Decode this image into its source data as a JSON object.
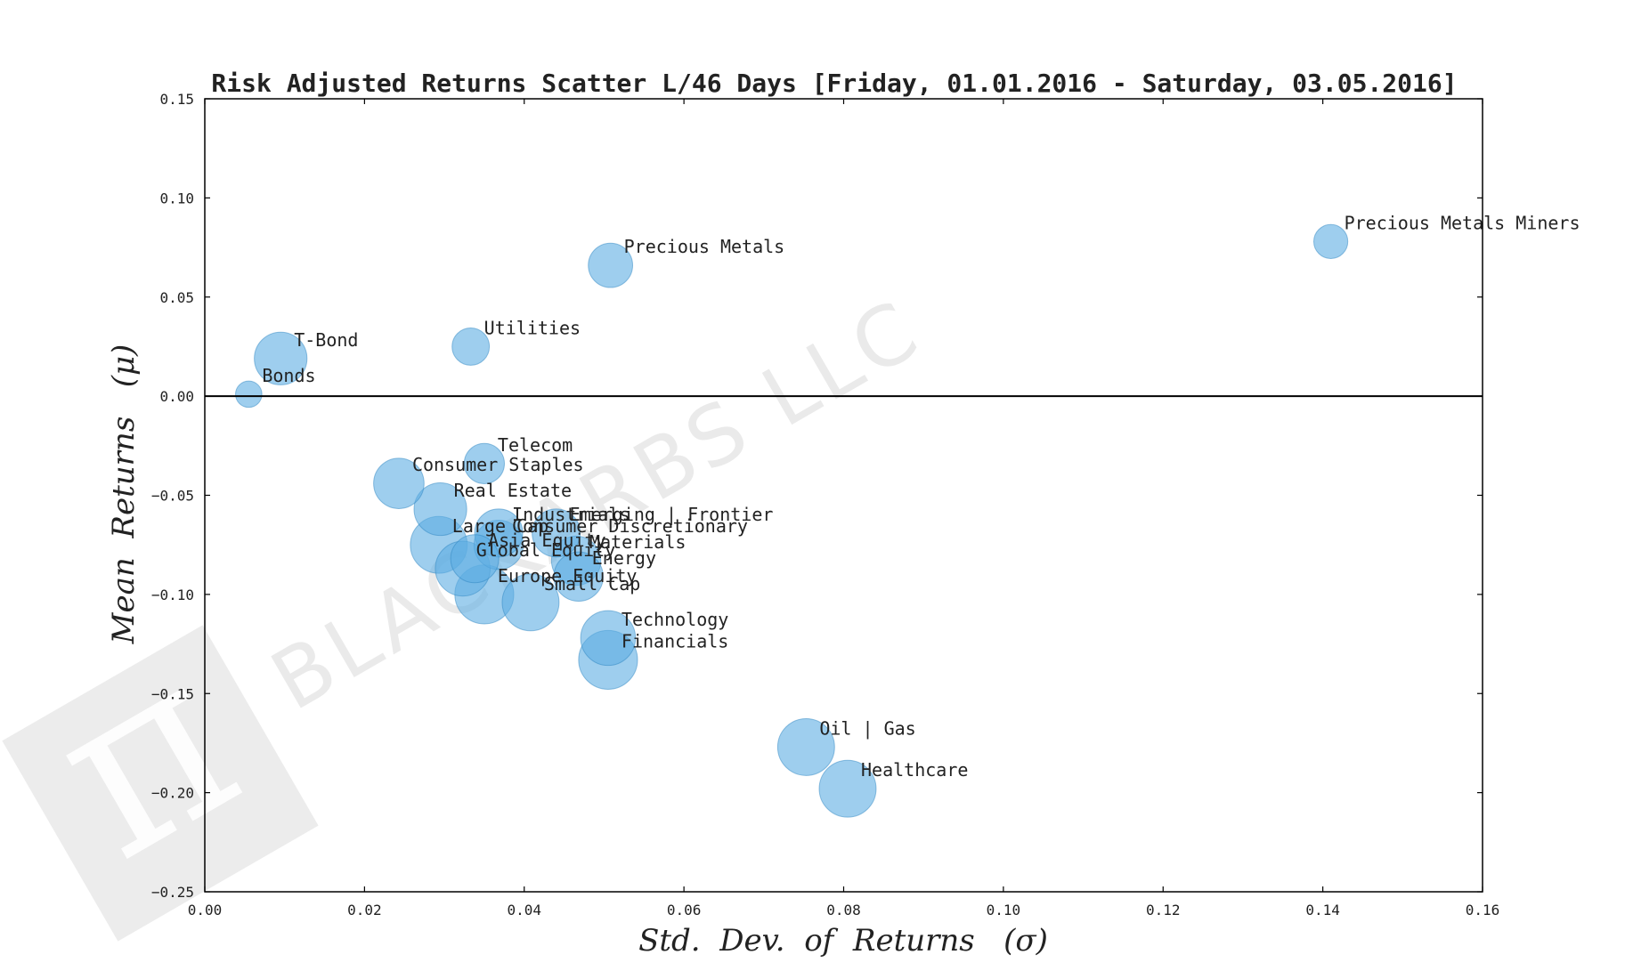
{
  "colors": {
    "bubble_fill": "#5dade2",
    "bubble_stroke": "#2e86c1",
    "zero_line": "#000000",
    "axis": "#000000",
    "watermark": "#d9d9d9"
  },
  "watermark": {
    "text": "BLACKARBS LLC",
    "logo_icon": "pi-icon"
  },
  "chart_data": {
    "type": "scatter",
    "title": "Risk Adjusted Returns Scatter L/46 Days [Friday, 01.01.2016 - Saturday, 03.05.2016]",
    "xlabel": "Std.  Dev.  of  Returns   (σ)",
    "ylabel": "Mean  Returns   (μ)",
    "xlim": [
      0.0,
      0.16
    ],
    "ylim": [
      -0.25,
      0.15
    ],
    "xticks": [
      "0.00",
      "0.02",
      "0.04",
      "0.06",
      "0.08",
      "0.10",
      "0.12",
      "0.14",
      "0.16"
    ],
    "yticks": [
      "0.15",
      "0.10",
      "0.05",
      "0.00",
      "−0.05",
      "−0.10",
      "−0.15",
      "−0.20",
      "−0.25"
    ],
    "grid": false,
    "reference_line_y": 0.0,
    "bubble_alpha": 0.6,
    "points": [
      {
        "label": "Precious Metals Miners",
        "x": 0.141,
        "y": 0.078,
        "size": 0.5
      },
      {
        "label": "Precious Metals",
        "x": 0.0508,
        "y": 0.066,
        "size": 0.85
      },
      {
        "label": "Utilities",
        "x": 0.0333,
        "y": 0.025,
        "size": 0.6
      },
      {
        "label": "T-Bond",
        "x": 0.0095,
        "y": 0.019,
        "size": 1.2
      },
      {
        "label": "Bonds",
        "x": 0.0055,
        "y": 0.001,
        "size": 0.3
      },
      {
        "label": "Telecom",
        "x": 0.035,
        "y": -0.034,
        "size": 0.7
      },
      {
        "label": "Consumer Staples",
        "x": 0.0243,
        "y": -0.044,
        "size": 1.1
      },
      {
        "label": "Real Estate",
        "x": 0.0295,
        "y": -0.057,
        "size": 1.2
      },
      {
        "label": "Industrials",
        "x": 0.0368,
        "y": -0.069,
        "size": 1.0
      },
      {
        "label": "Emerging | Frontier",
        "x": 0.044,
        "y": -0.069,
        "size": 1.0
      },
      {
        "label": "Consumer Discretionary",
        "x": 0.0368,
        "y": -0.075,
        "size": 1.05
      },
      {
        "label": "Large Cap",
        "x": 0.0293,
        "y": -0.075,
        "size": 1.4
      },
      {
        "label": "Asia Equity",
        "x": 0.0338,
        "y": -0.082,
        "size": 1.0
      },
      {
        "label": "Materials",
        "x": 0.0465,
        "y": -0.083,
        "size": 1.05
      },
      {
        "label": "Global Equity",
        "x": 0.0323,
        "y": -0.087,
        "size": 1.3
      },
      {
        "label": "Energy",
        "x": 0.0468,
        "y": -0.091,
        "size": 1.05
      },
      {
        "label": "Europe Equity",
        "x": 0.035,
        "y": -0.1,
        "size": 1.5
      },
      {
        "label": "Small Cap",
        "x": 0.0408,
        "y": -0.104,
        "size": 1.4
      },
      {
        "label": "Technology",
        "x": 0.0505,
        "y": -0.122,
        "size": 1.3
      },
      {
        "label": "Financials",
        "x": 0.0505,
        "y": -0.133,
        "size": 1.5
      },
      {
        "label": "Oil | Gas",
        "x": 0.0753,
        "y": -0.177,
        "size": 1.4
      },
      {
        "label": "Healthcare",
        "x": 0.0805,
        "y": -0.198,
        "size": 1.4
      }
    ]
  }
}
